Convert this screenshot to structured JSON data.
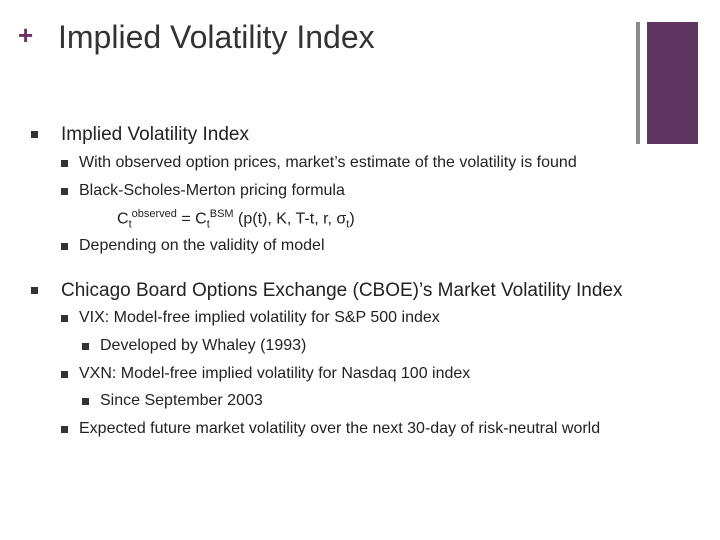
{
  "slide": {
    "plus_symbol": "+",
    "title": "Implied Volatility Index",
    "section1": {
      "heading": "Implied Volatility Index",
      "items": [
        "With observed option prices, market’s estimate of the volatility is found",
        "Black-Scholes-Merton pricing formula",
        "Depending on the validity of model"
      ],
      "formula": {
        "c1": "C",
        "t1": "t",
        "sup1": "observed",
        "eq": " = C",
        "t2": "t",
        "sup2": "BSM",
        "args": " (p(t), K, T-t, r, ",
        "sigma": "σ",
        "sigma_sub": "t",
        "close": ")"
      }
    },
    "section2": {
      "heading": "Chicago Board Options Exchange (CBOE)’s Market Volatility Index",
      "vix": "VIX: Model-free implied volatility for S&P 500 index",
      "vix_sub": "Developed by Whaley (1993)",
      "vxn": "VXN: Model-free implied volatility for Nasdaq 100 index",
      "vxn_sub": "Since September 2003",
      "expected": "Expected future market volatility over the next 30-day of risk-neutral world"
    }
  },
  "colors": {
    "accent": "#5e3460",
    "plus": "#6b2f63",
    "thin_bar": "#8a8a8a"
  }
}
